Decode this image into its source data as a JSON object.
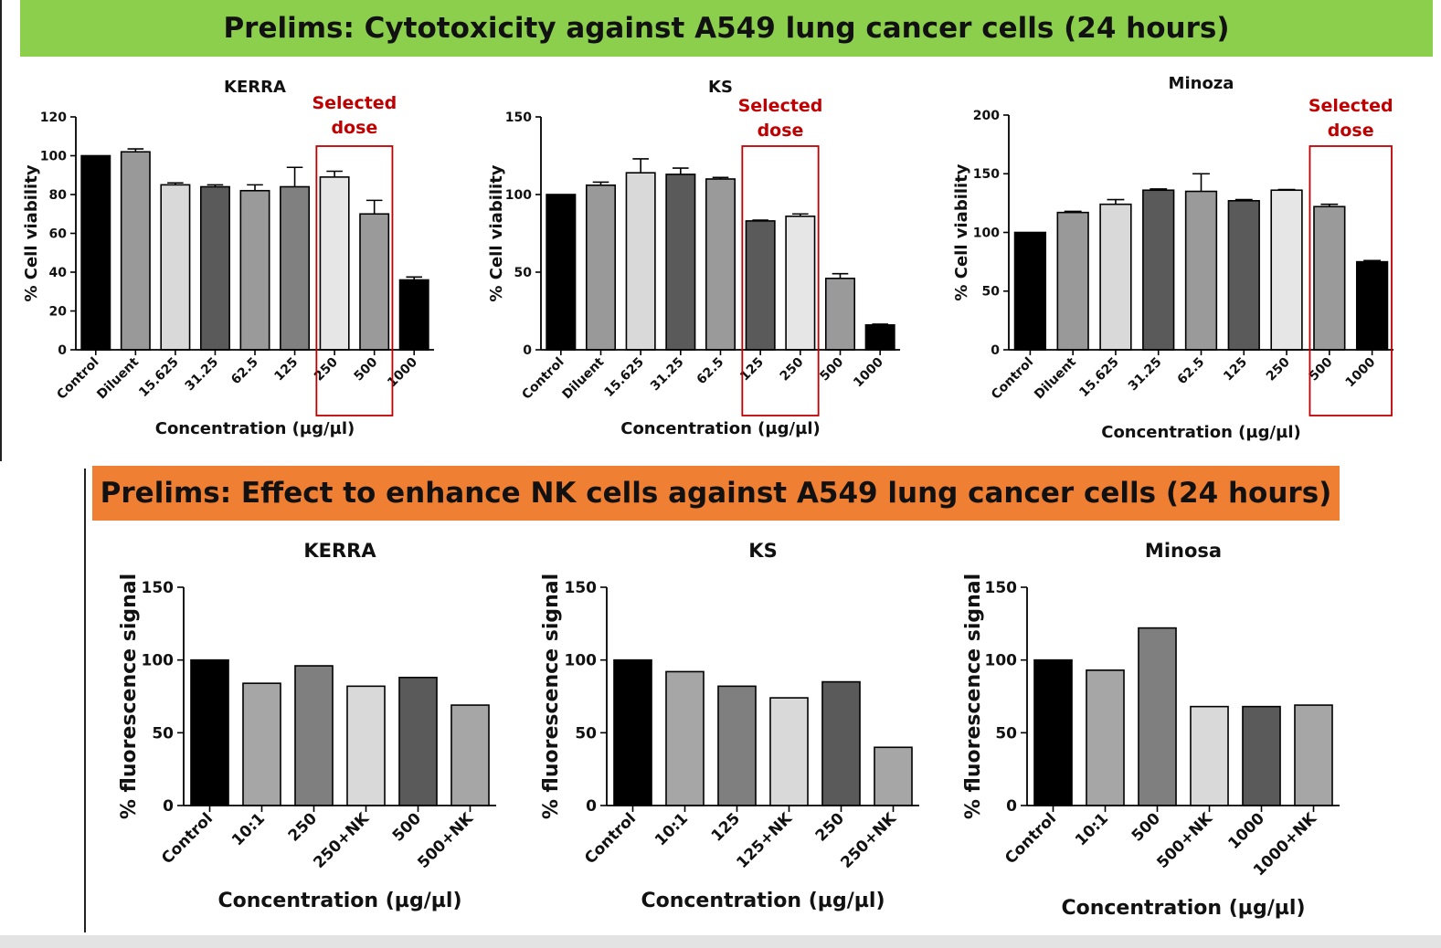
{
  "banners": {
    "top": {
      "text": "Prelims: Cytotoxicity against A549 lung cancer cells (24 hours)",
      "color": "#8ccf4c"
    },
    "bottom": {
      "text": "Prelims: Effect to enhance NK cells against A549 lung cancer cells (24 hours)",
      "color": "#ef7f32"
    }
  },
  "annotation": {
    "text_line1": "Selected",
    "text_line2": "dose",
    "color": "#c00000"
  },
  "chart_data": [
    {
      "id": "kerra-cyto",
      "type": "bar",
      "title": "KERRA",
      "xlabel": "Concentration (µg/µl)",
      "ylabel": "% Cell viability",
      "categories": [
        "Control",
        "Diluent",
        "15.625",
        "31.25",
        "62.5",
        "125",
        "250",
        "500",
        "1000"
      ],
      "values": [
        100,
        102,
        85,
        84,
        82,
        84,
        89,
        70,
        36
      ],
      "errors": [
        0,
        1.5,
        1,
        1,
        3,
        10,
        3,
        7,
        1.5
      ],
      "colors": [
        "#000000",
        "#999999",
        "#d9d9d9",
        "#5a5a5a",
        "#9a9a9a",
        "#808080",
        "#e6e6e6",
        "#9a9a9a",
        "#000000"
      ],
      "ylim": [
        0,
        120
      ],
      "yticks": [
        "0",
        "20",
        "40",
        "60",
        "80",
        "100",
        "120"
      ],
      "selected": [
        "250",
        "500"
      ]
    },
    {
      "id": "ks-cyto",
      "type": "bar",
      "title": "KS",
      "xlabel": "Concentration (µg/µl)",
      "ylabel": "% Cell viability",
      "categories": [
        "Control",
        "Diluent",
        "15.625",
        "31.25",
        "62.5",
        "125",
        "250",
        "500",
        "1000"
      ],
      "values": [
        100,
        106,
        114,
        113,
        110,
        83,
        86,
        46,
        16
      ],
      "errors": [
        0,
        2,
        9,
        4,
        1,
        0.5,
        1.5,
        3,
        0.5
      ],
      "colors": [
        "#000000",
        "#999999",
        "#d9d9d9",
        "#5a5a5a",
        "#9a9a9a",
        "#5a5a5a",
        "#e6e6e6",
        "#9a9a9a",
        "#000000"
      ],
      "ylim": [
        0,
        150
      ],
      "yticks": [
        "0",
        "50",
        "100",
        "150"
      ],
      "selected": [
        "125",
        "250"
      ]
    },
    {
      "id": "minoza-cyto",
      "type": "bar",
      "title": "Minoza",
      "xlabel": "Concentration (µg/µl)",
      "ylabel": "% Cell viability",
      "categories": [
        "Control",
        "Diluent",
        "15.625",
        "31.25",
        "62.5",
        "125",
        "250",
        "500",
        "1000"
      ],
      "values": [
        100,
        117,
        124,
        136,
        135,
        127,
        136,
        122,
        75
      ],
      "errors": [
        0,
        1,
        4,
        1,
        15,
        1,
        0.5,
        2,
        1
      ],
      "colors": [
        "#000000",
        "#999999",
        "#d9d9d9",
        "#5a5a5a",
        "#9a9a9a",
        "#5a5a5a",
        "#e6e6e6",
        "#9a9a9a",
        "#000000"
      ],
      "ylim": [
        0,
        200
      ],
      "yticks": [
        "0",
        "50",
        "100",
        "150",
        "200"
      ],
      "selected": [
        "500",
        "1000"
      ]
    },
    {
      "id": "kerra-nk",
      "type": "bar",
      "title": "KERRA",
      "xlabel": "Concentration (µg/µl)",
      "ylabel": "% fluorescence signal",
      "categories": [
        "Control",
        "10:1",
        "250",
        "250+NK",
        "500",
        "500+NK"
      ],
      "values": [
        100,
        84,
        96,
        82,
        88,
        69
      ],
      "colors": [
        "#000000",
        "#a6a6a6",
        "#7f7f7f",
        "#d9d9d9",
        "#5a5a5a",
        "#a6a6a6"
      ],
      "ylim": [
        0,
        150
      ],
      "yticks": [
        "0",
        "50",
        "100",
        "150"
      ]
    },
    {
      "id": "ks-nk",
      "type": "bar",
      "title": "KS",
      "xlabel": "Concentration (µg/µl)",
      "ylabel": "% fluorescence signal",
      "categories": [
        "Control",
        "10:1",
        "125",
        "125+NK",
        "250",
        "250+NK"
      ],
      "values": [
        100,
        92,
        82,
        74,
        85,
        40
      ],
      "colors": [
        "#000000",
        "#a6a6a6",
        "#7f7f7f",
        "#d9d9d9",
        "#5a5a5a",
        "#a6a6a6"
      ],
      "ylim": [
        0,
        150
      ],
      "yticks": [
        "0",
        "50",
        "100",
        "150"
      ]
    },
    {
      "id": "minosa-nk",
      "type": "bar",
      "title": "Minosa",
      "xlabel": "Concentration (µg/µl)",
      "ylabel": "% fluorescence signal",
      "categories": [
        "Control",
        "10:1",
        "500",
        "500+NK",
        "1000",
        "1000+NK"
      ],
      "values": [
        100,
        93,
        122,
        68,
        68,
        69
      ],
      "colors": [
        "#000000",
        "#a6a6a6",
        "#7f7f7f",
        "#d9d9d9",
        "#5a5a5a",
        "#a6a6a6"
      ],
      "ylim": [
        0,
        150
      ],
      "yticks": [
        "0",
        "50",
        "100",
        "150"
      ]
    }
  ]
}
